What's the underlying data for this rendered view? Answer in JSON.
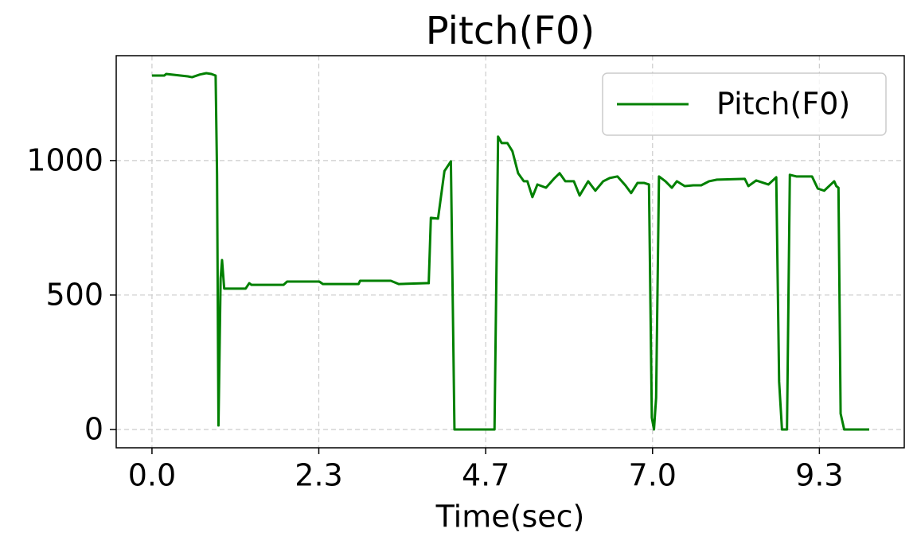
{
  "chart_data": {
    "type": "line",
    "title": "Pitch(F0)",
    "x_label": "Time(sec)",
    "series": [
      {
        "name": "Pitch(F0)",
        "color": "#008000",
        "x": [
          0,
          0.17,
          0.2,
          0.5,
          0.56,
          0.67,
          0.76,
          0.83,
          0.89,
          0.91,
          0.93,
          0.96,
          0.98,
          1.01,
          1.31,
          1.36,
          1.39,
          1.84,
          1.89,
          2.34,
          2.39,
          2.89,
          2.91,
          3.34,
          3.45,
          3.84,
          3.87,
          3.9,
          4.0,
          4.09,
          4.18,
          4.23,
          4.79,
          4.84,
          4.89,
          4.97,
          5.04,
          5.12,
          5.2,
          5.25,
          5.32,
          5.39,
          5.51,
          5.62,
          5.7,
          5.78,
          5.9,
          5.98,
          6.1,
          6.2,
          6.31,
          6.4,
          6.51,
          6.62,
          6.7,
          6.79,
          6.88,
          6.95,
          6.99,
          7.02,
          7.05,
          7.09,
          7.18,
          7.27,
          7.34,
          7.45,
          7.57,
          7.68,
          7.79,
          7.9,
          8.29,
          8.34,
          8.45,
          8.62,
          8.73,
          8.77,
          8.81,
          8.88,
          8.92,
          9.01,
          9.23,
          9.31,
          9.4,
          9.54,
          9.57,
          9.6,
          9.63,
          9.68,
          10.03
        ],
        "values": [
          1316,
          1316,
          1322,
          1313,
          1310,
          1320,
          1325,
          1322,
          1316,
          947,
          15,
          562,
          630,
          524,
          524,
          544,
          538,
          538,
          550,
          550,
          541,
          541,
          553,
          553,
          541,
          544,
          544,
          787,
          784,
          961,
          997,
          0,
          0,
          1089,
          1065,
          1065,
          1035,
          953,
          923,
          923,
          864,
          911,
          899,
          932,
          953,
          923,
          923,
          870,
          923,
          888,
          923,
          935,
          941,
          908,
          879,
          917,
          917,
          911,
          44,
          0,
          118,
          941,
          923,
          899,
          923,
          905,
          908,
          908,
          923,
          929,
          932,
          905,
          926,
          911,
          938,
          178,
          0,
          0,
          947,
          941,
          941,
          896,
          888,
          923,
          905,
          899,
          59,
          0,
          0
        ]
      }
    ],
    "xlim": [
      -0.5,
      10.52
    ],
    "ylim": [
      -68,
      1390
    ],
    "xticks": [
      {
        "value": 0,
        "label": "0.0"
      },
      {
        "value": 2.333,
        "label": "2.3"
      },
      {
        "value": 4.667,
        "label": "4.7"
      },
      {
        "value": 7.0,
        "label": "7.0"
      },
      {
        "value": 9.333,
        "label": "9.3"
      }
    ],
    "yticks": [
      0,
      500,
      1000
    ],
    "grid": true,
    "legend": "upper right"
  }
}
